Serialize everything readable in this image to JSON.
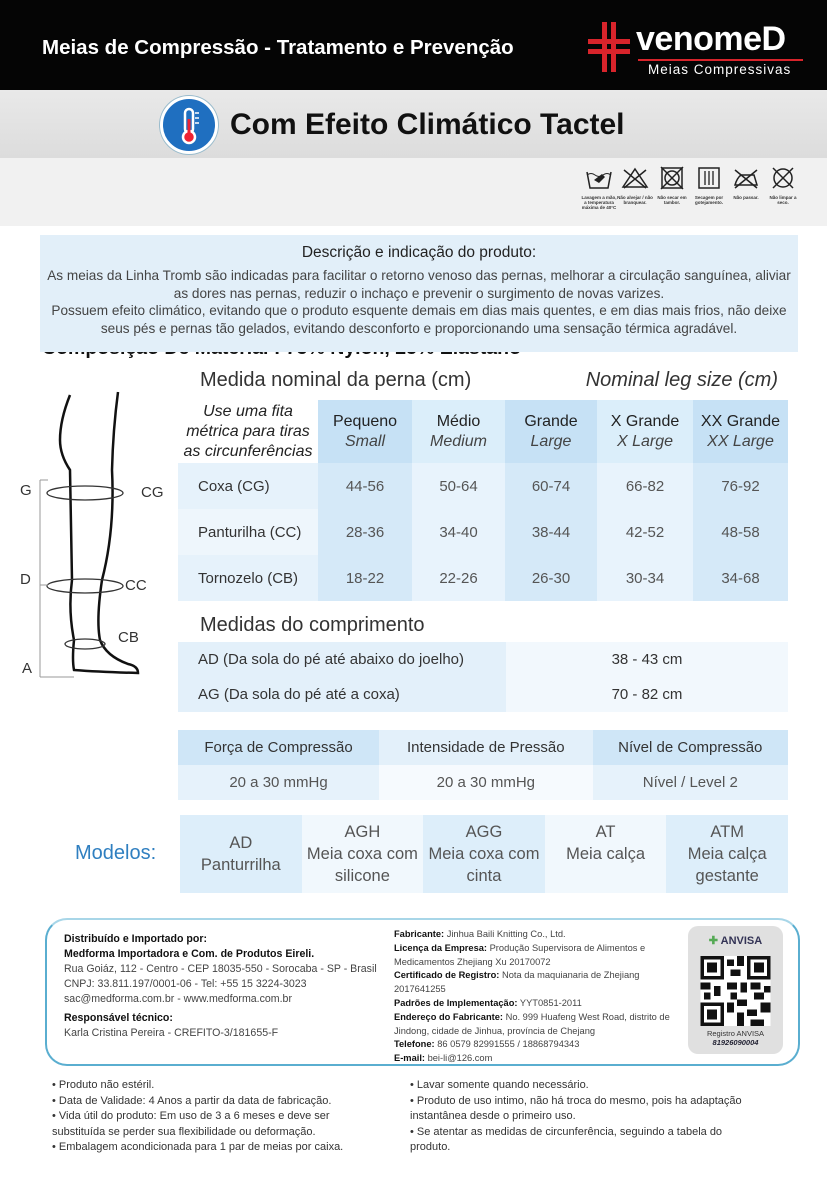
{
  "header": {
    "title": "Meias de Compressão - Tratamento e Prevenção",
    "brand": "venomeD",
    "brand_sub": "Meias Compressivas",
    "brand_color": "#d8242b"
  },
  "feature": {
    "icon": "thermometer-icon",
    "title": "Com Efeito Climático Tactel",
    "accent": "#1f6fc0"
  },
  "composition": {
    "text": "Composição De Material : 75% Nylon, 25% Elástano",
    "care": [
      {
        "icon": "hand-wash-icon",
        "label": "Lavagem a mão, a temperatura máxima de 40°C"
      },
      {
        "icon": "no-bleach-icon",
        "label": "Não alvejar / não branquear."
      },
      {
        "icon": "no-tumble-dry-icon",
        "label": "Não secar em tambor."
      },
      {
        "icon": "drip-dry-icon",
        "label": "Secagem por gotejamento."
      },
      {
        "icon": "no-iron-icon",
        "label": "Não passar."
      },
      {
        "icon": "no-dry-clean-icon",
        "label": "Não limpar a seco."
      }
    ]
  },
  "description": {
    "title": "Descrição e indicação do produto:",
    "p1": "As meias da Linha Tromb são indicadas para facilitar o retorno venoso das pernas, melhorar a circulação sanguínea, aliviar as dores nas pernas, reduzir o inchaço e prevenir o surgimento de novas varizes.",
    "p2": "Possuem efeito climático, evitando que o produto esquente demais em dias mais quentes, e em dias mais frios, não deixe seus pés e pernas tão gelados, evitando desconforto e proporcionando uma sensação térmica agradável."
  },
  "diagram": {
    "labels": [
      "G",
      "CG",
      "D",
      "CC",
      "CB",
      "A"
    ]
  },
  "sizes": {
    "title": "Medida nominal da perna (cm)",
    "title_en": "Nominal leg size (cm)",
    "hint": "Use uma fita métrica para tiras as circunferências",
    "columns": [
      {
        "pt": "Pequeno",
        "en": "Small"
      },
      {
        "pt": "Médio",
        "en": "Medium"
      },
      {
        "pt": "Grande",
        "en": "Large"
      },
      {
        "pt": "X Grande",
        "en": "X Large"
      },
      {
        "pt": "XX Grande",
        "en": "XX Large"
      }
    ],
    "rows": [
      {
        "label": "Coxa (CG)",
        "values": [
          "44-56",
          "50-64",
          "60-74",
          "66-82",
          "76-92"
        ]
      },
      {
        "label": "Panturilha (CC)",
        "values": [
          "28-36",
          "34-40",
          "38-44",
          "42-52",
          "48-58"
        ]
      },
      {
        "label": "Tornozelo (CB)",
        "values": [
          "18-22",
          "22-26",
          "26-30",
          "30-34",
          "34-68"
        ]
      }
    ]
  },
  "length": {
    "title": "Medidas do comprimento",
    "rows": [
      {
        "label": "AD (Da sola do pé até abaixo do joelho)",
        "value": "38 - 43 cm"
      },
      {
        "label": "AG (Da sola do pé até a coxa)",
        "value": "70 - 82 cm"
      }
    ]
  },
  "compression": {
    "headers": [
      "Força de Compressão",
      "Intensidade de Pressão",
      "Nível de Compressão"
    ],
    "values": [
      "20 a 30 mmHg",
      "20 a 30 mmHg",
      "Nível / Level 2"
    ]
  },
  "models": {
    "label": "Modelos:",
    "items": [
      {
        "code": "AD",
        "desc": "Panturrilha"
      },
      {
        "code": "AGH",
        "desc": "Meia coxa com silicone"
      },
      {
        "code": "AGG",
        "desc": "Meia coxa com cinta"
      },
      {
        "code": "AT",
        "desc": "Meia calça"
      },
      {
        "code": "ATM",
        "desc": "Meia calça gestante"
      }
    ]
  },
  "distributor": {
    "h1": "Distribuído e Importado por:",
    "h2": "Medforma Importadora e Com. de Produtos Eireli.",
    "l1": "Rua Goiáz, 112 - Centro - CEP 18035-550 - Sorocaba - SP - Brasil",
    "l2": "CNPJ: 33.811.197/0001-06 - Tel: +55 15 3224-3023",
    "l3": "sac@medforma.com.br - www.medforma.com.br",
    "rt": "Responsável técnico:",
    "rt_name": "Karla Cristina Pereira - CREFITO-3/181655-F"
  },
  "manufacturer": [
    {
      "k": "Fabricante:",
      "v": " Jinhua Baili Knitting Co., Ltd."
    },
    {
      "k": "Licença da Empresa:",
      "v": " Produção Supervisora de Alimentos e Medicamentos Zhejiang Xu 20170072"
    },
    {
      "k": "Certificado de Registro:",
      "v": " Nota da maquianaria de Zhejiang 2017641255"
    },
    {
      "k": "Padrões de Implementação:",
      "v": " YYT0851-2011"
    },
    {
      "k": "Endereço do Fabricante:",
      "v": " No. 999 Huafeng West Road, distrito de Jindong, cidade de Jinhua, província de Chejang"
    },
    {
      "k": "Telefone:",
      "v": " 86 0579 82991555 / 18868794343"
    },
    {
      "k": "E-mail:",
      "v": " bei-li@126.com"
    }
  ],
  "anvisa": {
    "logo": "ANVISA",
    "reg_label": "Registro ANVISA",
    "reg_number": "81926090004"
  },
  "notes_left": [
    "• Produto não estéril.",
    "• Data de Validade: 4 Anos a partir da data de fabricação.",
    "• Vida útil do produto: Em uso de 3 a 6 meses e deve ser substituída se perder sua flexibilidade ou deformação.",
    "• Embalagem acondicionada para 1 par de meias por caixa."
  ],
  "notes_right": [
    "• Lavar somente quando necessário.",
    "• Produto de uso intimo, não há troca do mesmo, pois ha adaptação instantânea desde o primeiro uso.",
    "• Se atentar as medidas de circunferência, seguindo a tabela do produto."
  ]
}
